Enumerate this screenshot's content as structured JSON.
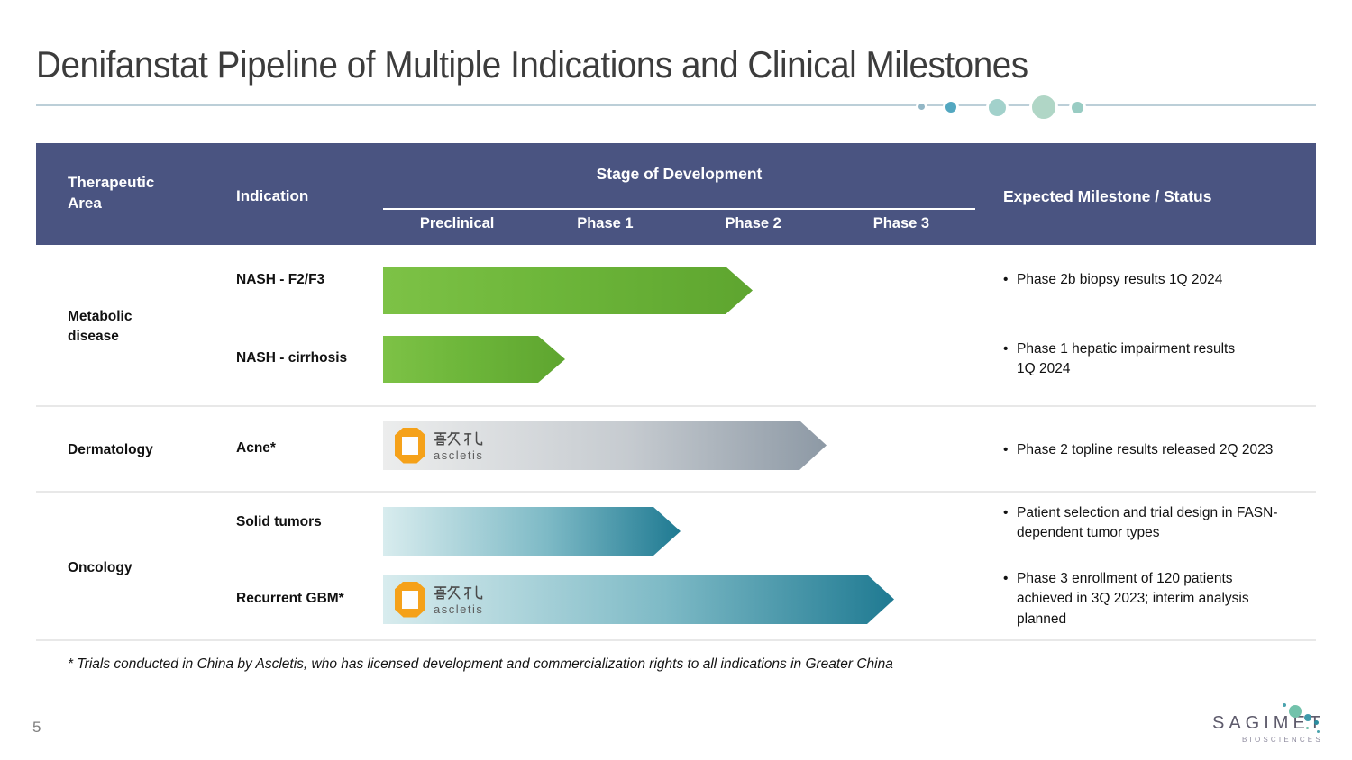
{
  "ui": {
    "bullet": "•"
  },
  "slide": {
    "title": "Denifanstat Pipeline of Multiple Indications and Clinical Milestones",
    "page_number": "5",
    "footnote": "* Trials conducted in China by Ascletis, who has licensed development and commercialization rights to all indications in Greater China"
  },
  "header": {
    "therapeutic_area": "Therapeutic Area",
    "indication": "Indication",
    "stage_group": "Stage of Development",
    "stages": [
      "Preclinical",
      "Phase 1",
      "Phase 2",
      "Phase 3"
    ],
    "milestone": "Expected Milestone / Status",
    "bg_color": "#4a5481"
  },
  "pipeline": {
    "groups": [
      {
        "area": "Metabolic disease"
      },
      {
        "area": "Dermatology"
      },
      {
        "area": "Oncology"
      }
    ],
    "rows": [
      {
        "area": "Metabolic disease",
        "indication": "NASH - F2/F3",
        "color_scheme": "green",
        "gradient": [
          "#7dc246",
          "#5ea52f"
        ],
        "arrow_width": 410,
        "stage_reached": "mid Phase 2",
        "ascletis_logo": false,
        "milestone": "Phase 2b biopsy results 1Q 2024"
      },
      {
        "area": "Metabolic disease",
        "indication": "NASH - cirrhosis",
        "color_scheme": "green",
        "gradient": [
          "#7dc246",
          "#5ea52f"
        ],
        "arrow_width": 202,
        "stage_reached": "early Phase 1",
        "ascletis_logo": false,
        "milestone": "Phase 1 hepatic impairment results\n1Q 2024"
      },
      {
        "area": "Dermatology",
        "indication": "Acne*",
        "color_scheme": "gray",
        "gradient": [
          "#eceded",
          "#8d99a5"
        ],
        "arrow_width": 492,
        "stage_reached": "Phase 2 complete",
        "ascletis_logo": true,
        "milestone": "Phase 2 topline results released 2Q 2023"
      },
      {
        "area": "Oncology",
        "indication": "Solid tumors",
        "color_scheme": "teal",
        "gradient": [
          "#d8ecee",
          "#1f7a92"
        ],
        "arrow_width": 330,
        "stage_reached": "Phase 1 complete",
        "ascletis_logo": false,
        "milestone": "Patient selection and trial design in FASN-\ndependent tumor types"
      },
      {
        "area": "Oncology",
        "indication": "Recurrent GBM*",
        "color_scheme": "teal",
        "gradient": [
          "#d8ecee",
          "#1f7a92"
        ],
        "arrow_width": 567,
        "stage_reached": "mid Phase 3",
        "ascletis_logo": true,
        "milestone": "Phase 3 enrollment  of 120 patients\nachieved in 3Q 2023; interim analysis\nplanned"
      }
    ]
  },
  "brand": {
    "ascletis_cjk": "歌礼",
    "ascletis_latin": "ascletis",
    "ascletis_orange": "#f5a119"
  },
  "footer_logo": {
    "name": "SAGIMET",
    "sub": "BIOSCIENCES"
  }
}
